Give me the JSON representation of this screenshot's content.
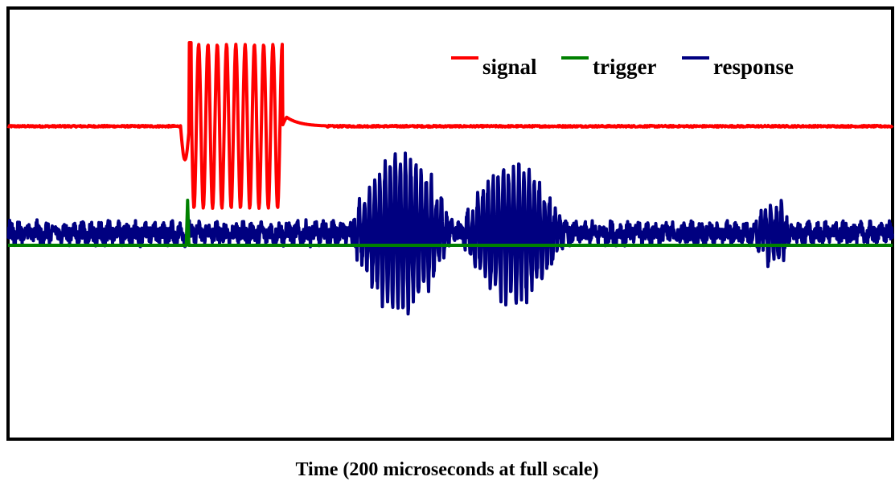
{
  "chart_data": {
    "type": "line",
    "title": "",
    "xlabel": "Time (200 microseconds at full scale)",
    "ylabel": "",
    "x_range": [
      0,
      200
    ],
    "x_unit": "microseconds",
    "grid": false,
    "legend_position": "top-right",
    "series": [
      {
        "name": "signal",
        "color": "#ff0000",
        "baseline": 0,
        "description_points": [
          {
            "t": 0,
            "v": 0
          },
          {
            "t": 39,
            "v": 0
          },
          {
            "t": 40,
            "v": -0.6
          },
          {
            "t": 41,
            "v": 1.0
          },
          {
            "t": 41.5,
            "v": -1.0
          },
          {
            "t": 60,
            "v": 0.8
          },
          {
            "t": 61.5,
            "v": -0.9
          },
          {
            "t": 63,
            "v": 0.15
          },
          {
            "t": 67,
            "v": 0.05
          },
          {
            "t": 70,
            "v": 0.02
          },
          {
            "t": 200,
            "v": 0
          }
        ],
        "burst": {
          "start": 41,
          "end": 62,
          "cycles": 10,
          "amplitude": 1.0
        }
      },
      {
        "name": "trigger",
        "color": "#008000",
        "baseline": 0,
        "pulse": {
          "t": 40.6,
          "height": 1.0,
          "width": 0.6
        }
      },
      {
        "name": "response",
        "color": "#000080",
        "baseline": 0,
        "noise_amplitude": 0.18,
        "bursts": [
          {
            "start": 77,
            "end": 101,
            "peak_t": 88,
            "amplitude": 1.0
          },
          {
            "start": 102,
            "end": 126,
            "peak_t": 111,
            "amplitude": 0.9
          },
          {
            "start": 168,
            "end": 178,
            "peak_t": 173,
            "amplitude": 0.35
          }
        ]
      }
    ]
  }
}
